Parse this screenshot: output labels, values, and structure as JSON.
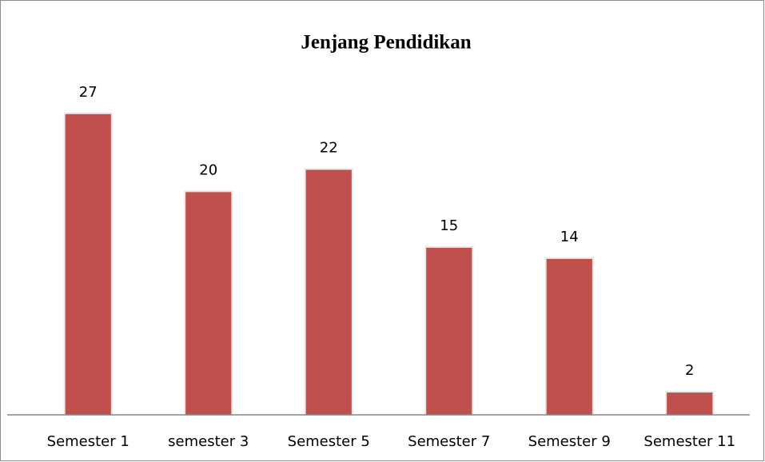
{
  "chart_data": {
    "type": "bar",
    "title": "Jenjang Pendidikan",
    "categories": [
      "Semester 1",
      "semester 3",
      "Semester 5",
      "Semester 7",
      "Semester 9",
      "Semester 11"
    ],
    "values": [
      27,
      20,
      22,
      15,
      14,
      2
    ],
    "color": "#c0504d",
    "ylim": [
      0,
      30
    ],
    "grid": false
  }
}
